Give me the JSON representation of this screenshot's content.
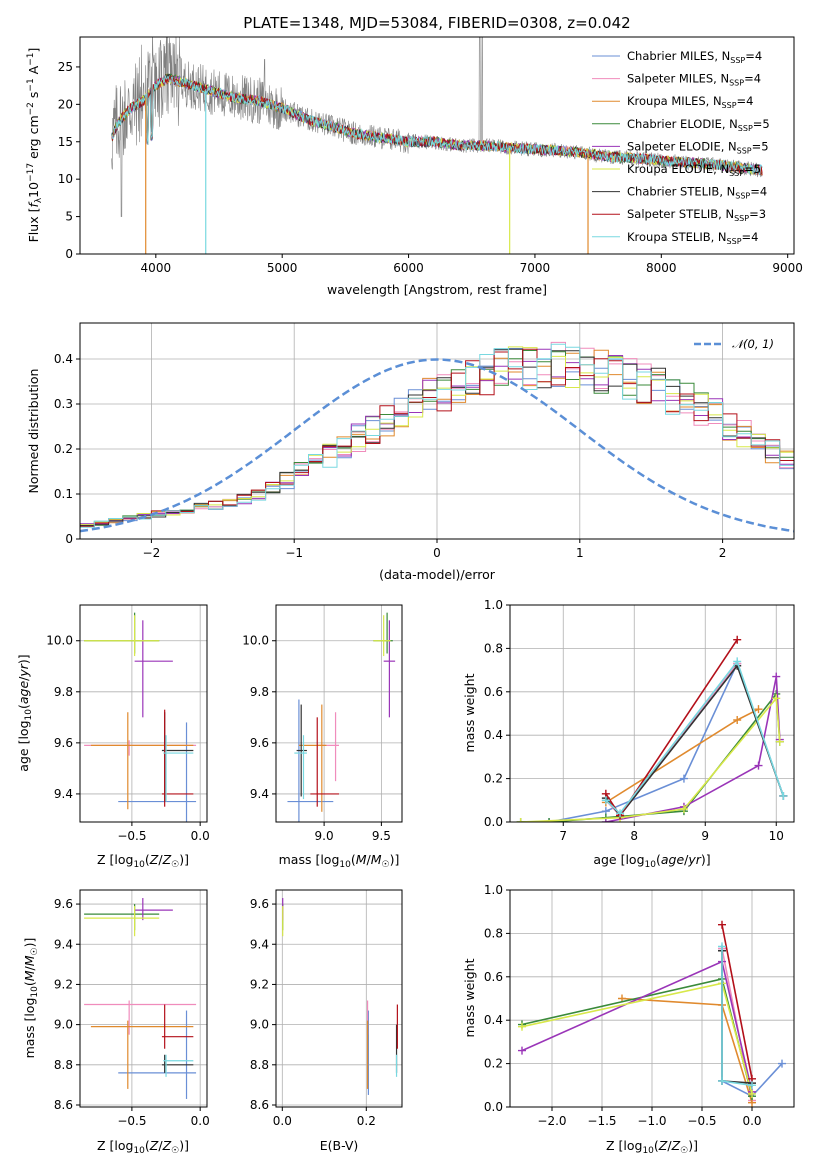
{
  "title": "PLATE=1348, MJD=53084, FIBERID=0308, z=0.042",
  "models": [
    {
      "label": "Chabrier MILES, N_SSP=4",
      "color": "#6a8fd6"
    },
    {
      "label": "Salpeter MILES, N_SSP=4",
      "color": "#f08cbc"
    },
    {
      "label": "Kroupa MILES, N_SSP=4",
      "color": "#e08a2e"
    },
    {
      "label": "Chabrier ELODIE, N_SSP=5",
      "color": "#3a8a3a"
    },
    {
      "label": "Salpeter ELODIE, N_SSP=5",
      "color": "#9a35b8"
    },
    {
      "label": "Kroupa ELODIE, N_SSP=5",
      "color": "#d8e84a"
    },
    {
      "label": "Chabrier STELIB, N_SSP=4",
      "color": "#333333"
    },
    {
      "label": "Salpeter STELIB, N_SSP=3",
      "color": "#b3101a"
    },
    {
      "label": "Kroupa STELIB, N_SSP=4",
      "color": "#78d8e0"
    }
  ],
  "chart_data": [
    {
      "id": "spectrum",
      "type": "line",
      "xlabel": "wavelength [Angstrom, rest frame]",
      "ylabel": "Flux [f_λ 10^-17 erg cm^-2 s^-1 A^-1]",
      "xlim": [
        3400,
        9050
      ],
      "ylim": [
        0,
        29
      ],
      "xticks": [
        4000,
        5000,
        6000,
        7000,
        8000,
        9000
      ],
      "yticks": [
        0,
        5,
        10,
        15,
        20,
        25
      ],
      "observed_color": "#808080",
      "continuum": {
        "x": [
          3650,
          3700,
          3800,
          3900,
          4000,
          4100,
          4200,
          4300,
          4400,
          4600,
          4800,
          5000,
          5200,
          5400,
          5600,
          5800,
          6000,
          6200,
          6400,
          6600,
          6800,
          7000,
          7200,
          7400,
          7600,
          7800,
          8000,
          8200,
          8400,
          8600,
          8800
        ],
        "y": [
          15.5,
          17.5,
          19.5,
          20.5,
          22.5,
          23.5,
          23.0,
          22.5,
          22.0,
          21.0,
          20.5,
          19.5,
          18.0,
          17.0,
          16.0,
          15.5,
          15.0,
          15.0,
          14.5,
          14.5,
          14.2,
          14.0,
          13.8,
          13.5,
          13.0,
          12.8,
          12.5,
          12.2,
          12.0,
          11.6,
          11.2
        ]
      },
      "dropouts": [
        {
          "model": 2,
          "x": 3920,
          "y": 0
        },
        {
          "model": 8,
          "x": 4395,
          "y": 0
        },
        {
          "model": 5,
          "x": 6800,
          "y": 0
        },
        {
          "model": 2,
          "x": 7420,
          "y": 0
        }
      ]
    },
    {
      "id": "residual-hist",
      "type": "histogram",
      "xlabel": "(data-model)/error",
      "ylabel": "Normed distribution",
      "xlim": [
        -2.5,
        2.5
      ],
      "ylim": [
        0,
        0.48
      ],
      "xticks": [
        -2,
        -1,
        0,
        1,
        2
      ],
      "yticks": [
        0.0,
        0.1,
        0.2,
        0.3,
        0.4
      ],
      "bin_width": 0.1,
      "bin_start": -2.5,
      "profile": [
        0.03,
        0.035,
        0.04,
        0.045,
        0.05,
        0.055,
        0.06,
        0.065,
        0.07,
        0.075,
        0.08,
        0.09,
        0.1,
        0.115,
        0.13,
        0.15,
        0.165,
        0.185,
        0.205,
        0.225,
        0.245,
        0.26,
        0.28,
        0.3,
        0.315,
        0.33,
        0.345,
        0.355,
        0.365,
        0.372,
        0.378,
        0.382,
        0.385,
        0.385,
        0.382,
        0.378,
        0.372,
        0.365,
        0.355,
        0.345,
        0.335,
        0.32,
        0.305,
        0.29,
        0.275,
        0.255,
        0.235,
        0.215,
        0.195,
        0.175,
        0.16,
        0.145,
        0.13,
        0.115,
        0.1,
        0.09,
        0.08,
        0.07,
        0.06,
        0.052,
        0.045,
        0.04,
        0.035,
        0.03,
        0.027,
        0.025,
        0.022,
        0.02,
        0.018,
        0.016,
        0.015
      ],
      "normal_label": "𝒩(0, 1)",
      "normal_color": "#5b8fd6"
    },
    {
      "id": "age-vs-Z",
      "type": "errorbar",
      "xlabel": "Z [log10(Z/Z☉)]",
      "ylabel": "age [log10(age/yr)]",
      "xlim": [
        -0.88,
        0.05
      ],
      "ylim": [
        9.29,
        10.14
      ],
      "xticks": [
        -0.5,
        0.0
      ],
      "xticklabels": [
        "−0.5",
        "0.0"
      ],
      "yticks": [
        9.4,
        9.6,
        9.8,
        10.0
      ],
      "yticklabels": [
        "9.4",
        "9.6",
        "9.8",
        "10.0"
      ],
      "points": [
        {
          "m": 0,
          "x": -0.1,
          "y": 9.37,
          "xl": -0.6,
          "xh": -0.03,
          "yl": 9.25,
          "yh": 9.68
        },
        {
          "m": 1,
          "x": -0.52,
          "y": 9.59,
          "xl": -0.85,
          "xh": -0.03,
          "yl": 9.55,
          "yh": 9.61
        },
        {
          "m": 2,
          "x": -0.53,
          "y": 9.59,
          "xl": -0.8,
          "xh": -0.05,
          "yl": 9.34,
          "yh": 9.72
        },
        {
          "m": 3,
          "x": -0.48,
          "y": 10.0,
          "xl": -0.85,
          "xh": -0.3,
          "yl": 9.95,
          "yh": 10.11
        },
        {
          "m": 4,
          "x": -0.42,
          "y": 9.92,
          "xl": -0.48,
          "xh": -0.2,
          "yl": 9.7,
          "yh": 10.08
        },
        {
          "m": 5,
          "x": -0.48,
          "y": 10.0,
          "xl": -0.85,
          "xh": -0.3,
          "yl": 9.94,
          "yh": 10.1
        },
        {
          "m": 6,
          "x": -0.26,
          "y": 9.57,
          "xl": -0.28,
          "xh": -0.05,
          "yl": 9.37,
          "yh": 9.72
        },
        {
          "m": 7,
          "x": -0.26,
          "y": 9.4,
          "xl": -0.28,
          "xh": -0.05,
          "yl": 9.35,
          "yh": 9.73
        },
        {
          "m": 8,
          "x": -0.25,
          "y": 9.56,
          "xl": -0.27,
          "xh": -0.05,
          "yl": 9.37,
          "yh": 9.63
        }
      ]
    },
    {
      "id": "age-vs-mass",
      "type": "errorbar",
      "xlabel": "mass [log10(M/M☉)]",
      "ylabel": "",
      "xlim": [
        8.58,
        9.68
      ],
      "ylim": [
        9.29,
        10.14
      ],
      "xticks": [
        9.0,
        9.5
      ],
      "xticklabels": [
        "9.0",
        "9.5"
      ],
      "yticks": [
        9.4,
        9.6,
        9.8,
        10.0
      ],
      "yticklabels": [
        "9.4",
        "9.6",
        "9.8",
        "10.0"
      ],
      "points": [
        {
          "m": 0,
          "x": 8.78,
          "y": 9.37,
          "xl": 8.68,
          "xh": 9.08,
          "yl": 9.25,
          "yh": 9.77
        },
        {
          "m": 1,
          "x": 9.1,
          "y": 9.59,
          "xl": 8.95,
          "xh": 9.13,
          "yl": 9.45,
          "yh": 9.72
        },
        {
          "m": 2,
          "x": 8.98,
          "y": 9.59,
          "xl": 8.78,
          "xh": 9.02,
          "yl": 9.33,
          "yh": 9.75
        },
        {
          "m": 3,
          "x": 9.55,
          "y": 10.0,
          "xl": 9.43,
          "xh": 9.6,
          "yl": 9.95,
          "yh": 10.11
        },
        {
          "m": 4,
          "x": 9.57,
          "y": 9.92,
          "xl": 9.52,
          "xh": 9.62,
          "yl": 9.7,
          "yh": 10.08
        },
        {
          "m": 5,
          "x": 9.52,
          "y": 10.0,
          "xl": 9.43,
          "xh": 9.58,
          "yl": 9.94,
          "yh": 10.1
        },
        {
          "m": 6,
          "x": 8.8,
          "y": 9.57,
          "xl": 8.76,
          "xh": 8.85,
          "yl": 9.39,
          "yh": 9.75
        },
        {
          "m": 7,
          "x": 8.94,
          "y": 9.4,
          "xl": 8.88,
          "xh": 9.13,
          "yl": 9.35,
          "yh": 9.7
        },
        {
          "m": 8,
          "x": 8.82,
          "y": 9.56,
          "xl": 8.74,
          "xh": 8.85,
          "yl": 9.38,
          "yh": 9.63
        }
      ]
    },
    {
      "id": "weight-vs-age",
      "type": "line",
      "xlabel": "age [log10(age/yr)]",
      "ylabel": "mass weight",
      "xlim": [
        6.25,
        10.25
      ],
      "ylim": [
        0,
        1
      ],
      "xticks": [
        7,
        8,
        9,
        10
      ],
      "xticklabels": [
        "7",
        "8",
        "9",
        "10"
      ],
      "yticks": [
        0.0,
        0.2,
        0.4,
        0.6,
        0.8,
        1.0
      ],
      "yticklabels": [
        "0.0",
        "0.2",
        "0.4",
        "0.6",
        "0.8",
        "1.0"
      ],
      "series": [
        {
          "m": 0,
          "x": [
            6.8,
            7.6,
            8.7,
            9.45,
            10.1
          ],
          "y": [
            0.0,
            0.05,
            0.2,
            0.73,
            0.12
          ]
        },
        {
          "m": 1,
          "x": [
            7.6,
            7.8,
            9.45,
            10.1
          ],
          "y": [
            0.1,
            0.03,
            0.73,
            0.12
          ]
        },
        {
          "m": 2,
          "x": [
            7.6,
            9.45,
            9.75
          ],
          "y": [
            0.09,
            0.47,
            0.52
          ]
        },
        {
          "m": 3,
          "x": [
            6.4,
            6.8,
            7.6,
            8.7,
            10.0,
            10.05
          ],
          "y": [
            0.0,
            0.0,
            0.02,
            0.05,
            0.59,
            0.37
          ]
        },
        {
          "m": 4,
          "x": [
            7.6,
            8.7,
            9.75,
            10.0,
            10.05
          ],
          "y": [
            0.0,
            0.07,
            0.26,
            0.67,
            0.38
          ]
        },
        {
          "m": 5,
          "x": [
            6.4,
            7.8,
            8.7,
            10.0,
            10.05
          ],
          "y": [
            0.0,
            0.02,
            0.06,
            0.57,
            0.37
          ]
        },
        {
          "m": 6,
          "x": [
            7.6,
            7.8,
            9.45,
            10.1
          ],
          "y": [
            0.11,
            0.03,
            0.72,
            0.12
          ]
        },
        {
          "m": 7,
          "x": [
            7.6,
            7.8,
            9.45
          ],
          "y": [
            0.13,
            0.03,
            0.84
          ]
        },
        {
          "m": 8,
          "x": [
            7.6,
            7.8,
            9.45,
            10.1
          ],
          "y": [
            0.1,
            0.04,
            0.74,
            0.12
          ]
        }
      ]
    },
    {
      "id": "mass-vs-Z",
      "type": "errorbar",
      "xlabel": "Z [log10(Z/Z☉)]",
      "ylabel": "mass [log10(M/M☉)]",
      "xlim": [
        -0.88,
        0.05
      ],
      "ylim": [
        8.59,
        9.67
      ],
      "xticks": [
        -0.5,
        0.0
      ],
      "xticklabels": [
        "−0.5",
        "0.0"
      ],
      "yticks": [
        8.6,
        8.8,
        9.0,
        9.2,
        9.4,
        9.6
      ],
      "yticklabels": [
        "8.6",
        "8.8",
        "9.0",
        "9.2",
        "9.4",
        "9.6"
      ],
      "points": [
        {
          "m": 0,
          "x": -0.1,
          "y": 8.76,
          "xl": -0.6,
          "xh": -0.03,
          "yl": 8.63,
          "yh": 9.07
        },
        {
          "m": 1,
          "x": -0.52,
          "y": 9.1,
          "xl": -0.85,
          "xh": -0.03,
          "yl": 8.95,
          "yh": 9.12
        },
        {
          "m": 2,
          "x": -0.53,
          "y": 8.99,
          "xl": -0.8,
          "xh": -0.05,
          "yl": 8.68,
          "yh": 9.02
        },
        {
          "m": 3,
          "x": -0.48,
          "y": 9.55,
          "xl": -0.85,
          "xh": -0.3,
          "yl": 9.47,
          "yh": 9.6
        },
        {
          "m": 4,
          "x": -0.42,
          "y": 9.57,
          "xl": -0.48,
          "xh": -0.2,
          "yl": 9.52,
          "yh": 9.63
        },
        {
          "m": 5,
          "x": -0.48,
          "y": 9.53,
          "xl": -0.85,
          "xh": -0.3,
          "yl": 9.44,
          "yh": 9.59
        },
        {
          "m": 6,
          "x": -0.26,
          "y": 8.8,
          "xl": -0.28,
          "xh": -0.05,
          "yl": 8.76,
          "yh": 8.85
        },
        {
          "m": 7,
          "x": -0.26,
          "y": 8.94,
          "xl": -0.28,
          "xh": -0.05,
          "yl": 8.88,
          "yh": 9.1
        },
        {
          "m": 8,
          "x": -0.25,
          "y": 8.82,
          "xl": -0.27,
          "xh": -0.05,
          "yl": 8.74,
          "yh": 8.85
        }
      ]
    },
    {
      "id": "mass-vs-ebv",
      "type": "errorbar",
      "xlabel": "E(B-V)",
      "ylabel": "",
      "xlim": [
        -0.015,
        0.285
      ],
      "ylim": [
        8.59,
        9.67
      ],
      "xticks": [
        0.0,
        0.2
      ],
      "xticklabels": [
        "0.0",
        "0.2"
      ],
      "yticks": [
        8.6,
        8.8,
        9.0,
        9.2,
        9.4,
        9.6
      ],
      "yticklabels": [
        "8.6",
        "8.8",
        "9.0",
        "9.2",
        "9.4",
        "9.6"
      ],
      "points": [
        {
          "m": 0,
          "x": 0.205,
          "y": 8.76,
          "xl": 0.205,
          "xh": 0.205,
          "yl": 8.65,
          "yh": 9.07
        },
        {
          "m": 1,
          "x": 0.203,
          "y": 9.1,
          "xl": 0.203,
          "xh": 0.203,
          "yl": 8.95,
          "yh": 9.12
        },
        {
          "m": 2,
          "x": 0.203,
          "y": 8.99,
          "xl": 0.203,
          "xh": 0.203,
          "yl": 8.68,
          "yh": 9.02
        },
        {
          "m": 3,
          "x": 0.001,
          "y": 9.55,
          "xl": 0.001,
          "xh": 0.001,
          "yl": 9.47,
          "yh": 9.6
        },
        {
          "m": 4,
          "x": 0.001,
          "y": 9.57,
          "xl": 0.001,
          "xh": 0.001,
          "yl": 9.52,
          "yh": 9.63
        },
        {
          "m": 5,
          "x": 0.001,
          "y": 9.53,
          "xl": 0.001,
          "xh": 0.001,
          "yl": 9.44,
          "yh": 9.59
        },
        {
          "m": 6,
          "x": 0.272,
          "y": 8.8,
          "xl": 0.272,
          "xh": 0.272,
          "yl": 8.76,
          "yh": 9.0
        },
        {
          "m": 7,
          "x": 0.274,
          "y": 8.97,
          "xl": 0.274,
          "xh": 0.274,
          "yl": 8.88,
          "yh": 9.1
        },
        {
          "m": 8,
          "x": 0.272,
          "y": 8.82,
          "xl": 0.272,
          "xh": 0.272,
          "yl": 8.74,
          "yh": 8.85
        }
      ]
    },
    {
      "id": "weight-vs-Z",
      "type": "line",
      "xlabel": "Z [log10(Z/Z☉)]",
      "ylabel": "mass weight",
      "xlim": [
        -2.42,
        0.42
      ],
      "ylim": [
        0,
        1
      ],
      "xticks": [
        -2.0,
        -1.5,
        -1.0,
        -0.5,
        0.0
      ],
      "xticklabels": [
        "−2.0",
        "−1.5",
        "−1.0",
        "−0.5",
        "0.0"
      ],
      "yticks": [
        0.0,
        0.2,
        0.4,
        0.6,
        0.8,
        1.0
      ],
      "yticklabels": [
        "0.0",
        "0.2",
        "0.4",
        "0.6",
        "0.8",
        "1.0"
      ],
      "series": [
        {
          "m": 0,
          "x": [
            -0.3,
            -0.3,
            0.0,
            0.3
          ],
          "y": [
            0.73,
            0.12,
            0.05,
            0.2
          ]
        },
        {
          "m": 1,
          "x": [
            -0.3,
            0.0
          ],
          "y": [
            0.73,
            0.03
          ]
        },
        {
          "m": 2,
          "x": [
            -1.3,
            -0.3,
            0.0
          ],
          "y": [
            0.5,
            0.47,
            0.02
          ]
        },
        {
          "m": 3,
          "x": [
            -2.3,
            -0.3,
            0.0
          ],
          "y": [
            0.38,
            0.59,
            0.05
          ]
        },
        {
          "m": 4,
          "x": [
            -2.3,
            -0.3,
            0.0
          ],
          "y": [
            0.26,
            0.67,
            0.07
          ]
        },
        {
          "m": 5,
          "x": [
            -2.3,
            -0.3,
            0.0
          ],
          "y": [
            0.37,
            0.57,
            0.06
          ]
        },
        {
          "m": 6,
          "x": [
            -0.3,
            -0.3,
            0.0
          ],
          "y": [
            0.72,
            0.12,
            0.11
          ]
        },
        {
          "m": 7,
          "x": [
            -0.3,
            0.0
          ],
          "y": [
            0.84,
            0.13
          ]
        },
        {
          "m": 8,
          "x": [
            -0.3,
            -0.3,
            0.0
          ],
          "y": [
            0.74,
            0.12,
            0.1
          ]
        }
      ]
    }
  ]
}
